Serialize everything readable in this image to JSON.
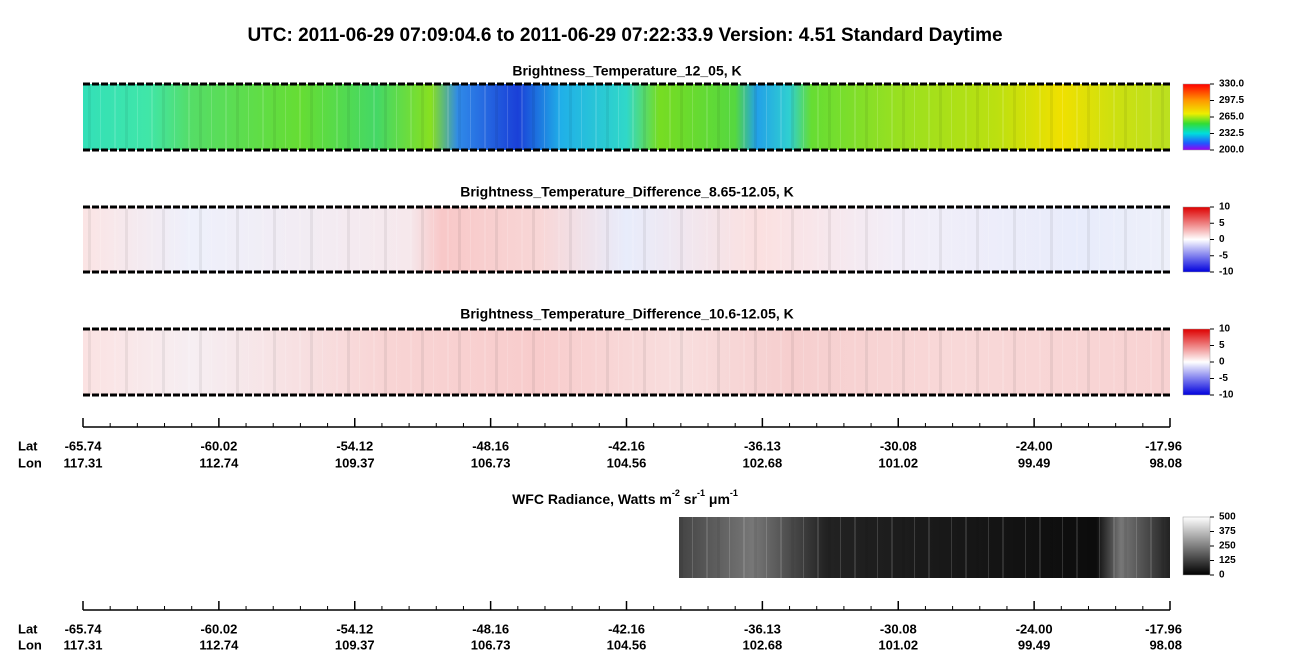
{
  "title": "UTC:  2011-06-29   07:09:04.6  to  2011-06-29   07:22:33.9    Version: 4.51  Standard Daytime",
  "panels": [
    {
      "title": "Brightness_Temperature_12_05, K",
      "colorbar_ticks": [
        "330.0",
        "297.5",
        "265.0",
        "232.5",
        "200.0"
      ]
    },
    {
      "title": "Brightness_Temperature_Difference_8.65-12.05, K",
      "colorbar_ticks": [
        "10",
        "5",
        "0",
        "-5",
        "-10"
      ]
    },
    {
      "title": "Brightness_Temperature_Difference_10.6-12.05, K",
      "colorbar_ticks": [
        "10",
        "5",
        "0",
        "-5",
        "-10"
      ]
    }
  ],
  "wfc": {
    "title_parts": [
      "WFC Radiance, Watts m",
      "-2",
      " sr",
      "-1",
      " μm",
      "-1"
    ],
    "colorbar_ticks": [
      "500",
      "375",
      "250",
      "125",
      "0"
    ]
  },
  "axes": [
    {
      "row_labels": [
        "Lat",
        "Lon"
      ],
      "lat": [
        "-65.74",
        "-60.02",
        "-54.12",
        "-48.16",
        "-42.16",
        "-36.13",
        "-30.08",
        "-24.00",
        "-17.96"
      ],
      "lon": [
        "117.31",
        "112.74",
        "109.37",
        "106.73",
        "104.56",
        "102.68",
        "101.02",
        "99.49",
        "98.08"
      ]
    },
    {
      "row_labels": [
        "Lat",
        "Lon"
      ],
      "lat": [
        "-65.74",
        "-60.02",
        "-54.12",
        "-48.16",
        "-42.16",
        "-36.13",
        "-30.08",
        "-24.00",
        "-17.96"
      ],
      "lon": [
        "117.31",
        "112.74",
        "109.37",
        "106.73",
        "104.56",
        "102.68",
        "101.02",
        "99.49",
        "98.08"
      ]
    }
  ]
}
